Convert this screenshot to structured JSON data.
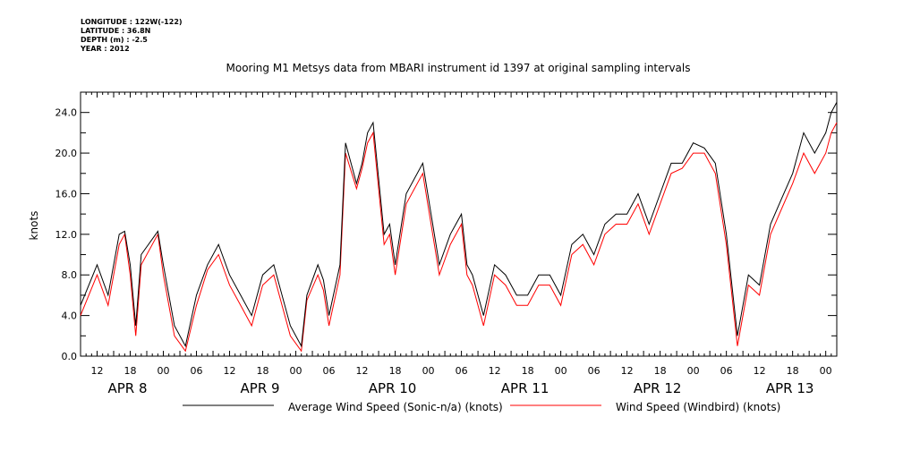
{
  "meta": {
    "longitude": "LONGITUDE : 122W(-122)",
    "latitude": "LATITUDE : 36.8N",
    "depth": "DEPTH (m) : -2.5",
    "year": "YEAR : 2012"
  },
  "chart_data": {
    "type": "line",
    "title": "Mooring M1 Metsys data from MBARI instrument id 1397 at original sampling intervals",
    "xlabel": "",
    "ylabel": "knots",
    "xlim": [
      "2012-04-07T09:00",
      "2012-04-13T02:00"
    ],
    "ylim": [
      0,
      26
    ],
    "y_ticks": [
      "0.0",
      "4.0",
      "8.0",
      "12.0",
      "16.0",
      "20.0",
      "24.0"
    ],
    "hour_ticks": [
      "12",
      "18",
      "00",
      "06",
      "12",
      "18",
      "00",
      "06",
      "12",
      "18",
      "00",
      "06",
      "12",
      "18",
      "00",
      "06",
      "12",
      "18",
      "00",
      "06",
      "12",
      "18",
      "00"
    ],
    "day_labels": [
      "APR  8",
      "APR  9",
      "APR 10",
      "APR 11",
      "APR 12",
      "APR 13"
    ],
    "x_times": [
      "2012-04-07T09:00",
      "2012-04-07T12:00",
      "2012-04-07T14:00",
      "2012-04-07T16:00",
      "2012-04-07T17:00",
      "2012-04-07T18:00",
      "2012-04-07T19:00",
      "2012-04-07T20:00",
      "2012-04-07T23:00",
      "2012-04-08T00:00",
      "2012-04-08T02:00",
      "2012-04-08T04:00",
      "2012-04-08T06:00",
      "2012-04-08T08:00",
      "2012-04-08T10:00",
      "2012-04-08T12:00",
      "2012-04-08T14:00",
      "2012-04-08T16:00",
      "2012-04-08T18:00",
      "2012-04-08T20:00",
      "2012-04-08T23:00",
      "2012-04-09T01:00",
      "2012-04-09T02:00",
      "2012-04-09T04:00",
      "2012-04-09T05:00",
      "2012-04-09T06:00",
      "2012-04-09T08:00",
      "2012-04-09T09:00",
      "2012-04-09T11:00",
      "2012-04-09T12:00",
      "2012-04-09T13:00",
      "2012-04-09T14:00",
      "2012-04-09T16:00",
      "2012-04-09T17:00",
      "2012-04-09T18:00",
      "2012-04-09T20:00",
      "2012-04-09T23:00",
      "2012-04-10T02:00",
      "2012-04-10T04:00",
      "2012-04-10T06:00",
      "2012-04-10T07:00",
      "2012-04-10T08:00",
      "2012-04-10T10:00",
      "2012-04-10T12:00",
      "2012-04-10T14:00",
      "2012-04-10T16:00",
      "2012-04-10T18:00",
      "2012-04-10T20:00",
      "2012-04-10T22:00",
      "2012-04-11T00:00",
      "2012-04-11T02:00",
      "2012-04-11T04:00",
      "2012-04-11T06:00",
      "2012-04-11T08:00",
      "2012-04-11T10:00",
      "2012-04-11T12:00",
      "2012-04-11T14:00",
      "2012-04-11T16:00",
      "2012-04-11T18:00",
      "2012-04-11T20:00",
      "2012-04-11T22:00",
      "2012-04-12T00:00",
      "2012-04-12T02:00",
      "2012-04-12T04:00",
      "2012-04-12T06:00",
      "2012-04-12T08:00",
      "2012-04-12T10:00",
      "2012-04-12T12:00",
      "2012-04-12T14:00",
      "2012-04-12T16:00",
      "2012-04-12T18:00",
      "2012-04-12T20:00",
      "2012-04-12T22:00",
      "2012-04-13T00:00",
      "2012-04-13T01:00",
      "2012-04-13T02:00"
    ],
    "series": [
      {
        "name": "Average Wind Speed (Sonic-n/a) (knots)",
        "color": "#000000",
        "values": [
          5.0,
          9.0,
          6.0,
          12.0,
          12.3,
          9.0,
          3.0,
          10.0,
          12.3,
          9.0,
          3.0,
          1.0,
          6.0,
          9.0,
          11.0,
          8.0,
          6.0,
          4.0,
          8.0,
          9.0,
          3.0,
          1.0,
          6.0,
          9.0,
          7.5,
          4.0,
          9.0,
          21.0,
          17.0,
          19.0,
          22.0,
          23.0,
          12.0,
          13.0,
          9.0,
          16.0,
          19.0,
          9.0,
          12.0,
          14.0,
          9.0,
          8.0,
          4.0,
          9.0,
          8.0,
          6.0,
          6.0,
          8.0,
          8.0,
          6.0,
          11.0,
          12.0,
          10.0,
          13.0,
          14.0,
          14.0,
          16.0,
          13.0,
          16.0,
          19.0,
          19.0,
          21.0,
          20.5,
          19.0,
          12.0,
          2.0,
          8.0,
          7.0,
          13.0,
          15.5,
          18.0,
          22.0,
          20.0,
          22.0,
          24.0,
          25.0
        ]
      },
      {
        "name": "Wind Speed (Windbird) (knots)",
        "color": "#ff0000",
        "values": [
          4.0,
          8.0,
          5.0,
          11.0,
          12.0,
          8.0,
          2.0,
          9.0,
          12.0,
          8.0,
          2.0,
          0.5,
          5.0,
          8.5,
          10.0,
          7.0,
          5.0,
          3.0,
          7.0,
          8.0,
          2.0,
          0.5,
          5.5,
          8.0,
          6.5,
          3.0,
          8.0,
          20.0,
          16.5,
          18.5,
          21.0,
          22.0,
          11.0,
          12.0,
          8.0,
          15.0,
          18.0,
          8.0,
          11.0,
          13.0,
          8.0,
          7.0,
          3.0,
          8.0,
          7.0,
          5.0,
          5.0,
          7.0,
          7.0,
          5.0,
          10.0,
          11.0,
          9.0,
          12.0,
          13.0,
          13.0,
          15.0,
          12.0,
          15.0,
          18.0,
          18.5,
          20.0,
          20.0,
          18.0,
          11.0,
          1.0,
          7.0,
          6.0,
          12.0,
          14.5,
          17.0,
          20.0,
          18.0,
          20.0,
          22.0,
          23.0
        ]
      }
    ],
    "legend_position": "bottom"
  }
}
